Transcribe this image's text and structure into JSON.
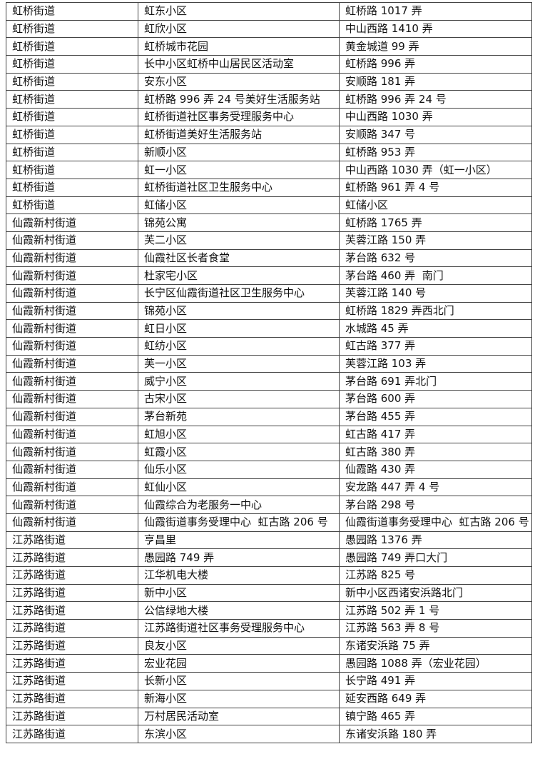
{
  "table": {
    "rows": [
      [
        "虹桥街道",
        "虹东小区",
        "虹桥路 1017 弄"
      ],
      [
        "虹桥街道",
        "虹欣小区",
        "中山西路 1410 弄"
      ],
      [
        "虹桥街道",
        "虹桥城市花园",
        "黄金城道 99 弄"
      ],
      [
        "虹桥街道",
        "长中小区虹桥中山居民区活动室",
        "虹桥路 996 弄"
      ],
      [
        "虹桥街道",
        "安东小区",
        "安顺路 181 弄"
      ],
      [
        "虹桥街道",
        "虹桥路 996 弄 24 号美好生活服务站",
        "虹桥路 996 弄 24 号"
      ],
      [
        "虹桥街道",
        "虹桥街道社区事务受理服务中心",
        "中山西路 1030 弄"
      ],
      [
        "虹桥街道",
        "虹桥街道美好生活服务站",
        "安顺路 347 号"
      ],
      [
        "虹桥街道",
        "新顺小区",
        "虹桥路 953 弄"
      ],
      [
        "虹桥街道",
        "虹一小区",
        "中山西路 1030 弄（虹一小区）"
      ],
      [
        "虹桥街道",
        "虹桥街道社区卫生服务中心",
        "虹桥路 961 弄 4 号"
      ],
      [
        "虹桥街道",
        "虹储小区",
        "虹储小区"
      ],
      [
        "仙霞新村街道",
        "锦苑公寓",
        "虹桥路 1765 弄"
      ],
      [
        "仙霞新村街道",
        "芙二小区",
        "芙蓉江路 150 弄"
      ],
      [
        "仙霞新村街道",
        "仙霞社区长者食堂",
        "茅台路 632 号"
      ],
      [
        "仙霞新村街道",
        "杜家宅小区",
        "茅台路 460 弄  南门"
      ],
      [
        "仙霞新村街道",
        "长宁区仙霞街道社区卫生服务中心",
        "芙蓉江路 140 号"
      ],
      [
        "仙霞新村街道",
        "锦苑小区",
        "虹桥路 1829 弄西北门"
      ],
      [
        "仙霞新村街道",
        "虹日小区",
        "水城路 45 弄"
      ],
      [
        "仙霞新村街道",
        "虹纺小区",
        "虹古路 377 弄"
      ],
      [
        "仙霞新村街道",
        "芙一小区",
        "芙蓉江路 103 弄"
      ],
      [
        "仙霞新村街道",
        "威宁小区",
        "茅台路 691 弄北门"
      ],
      [
        "仙霞新村街道",
        "古宋小区",
        "茅台路 600 弄"
      ],
      [
        "仙霞新村街道",
        "茅台新苑",
        "茅台路 455 弄"
      ],
      [
        "仙霞新村街道",
        "虹旭小区",
        "虹古路 417 弄"
      ],
      [
        "仙霞新村街道",
        "虹霞小区",
        "虹古路 380 弄"
      ],
      [
        "仙霞新村街道",
        "仙乐小区",
        "仙霞路 430 弄"
      ],
      [
        "仙霞新村街道",
        "虹仙小区",
        "安龙路 447 弄 4 号"
      ],
      [
        "仙霞新村街道",
        "仙霞综合为老服务一中心",
        "茅台路 298 号"
      ],
      [
        "仙霞新村街道",
        "仙霞街道事务受理中心  虹古路 206 号",
        "仙霞街道事务受理中心  虹古路 206 号"
      ],
      [
        "江苏路街道",
        "亨昌里",
        "愚园路 1376 弄"
      ],
      [
        "江苏路街道",
        "愚园路 749 弄",
        "愚园路 749 弄口大门"
      ],
      [
        "江苏路街道",
        "江华机电大楼",
        "江苏路 825 号"
      ],
      [
        "江苏路街道",
        "新中小区",
        "新中小区西诸安浜路北门"
      ],
      [
        "江苏路街道",
        "公信绿地大楼",
        "江苏路 502 弄 1 号"
      ],
      [
        "江苏路街道",
        "江苏路街道社区事务受理服务中心",
        "江苏路 563 弄 8 号"
      ],
      [
        "江苏路街道",
        "良友小区",
        "东诸安浜路 75 弄"
      ],
      [
        "江苏路街道",
        "宏业花园",
        "愚园路 1088 弄（宏业花园）"
      ],
      [
        "江苏路街道",
        "长新小区",
        "长宁路 491 弄"
      ],
      [
        "江苏路街道",
        "新海小区",
        "延安西路 649 弄"
      ],
      [
        "江苏路街道",
        "万村居民活动室",
        "镇宁路 465 弄"
      ],
      [
        "江苏路街道",
        "东滨小区",
        "东诸安浜路 180 弄"
      ]
    ]
  }
}
